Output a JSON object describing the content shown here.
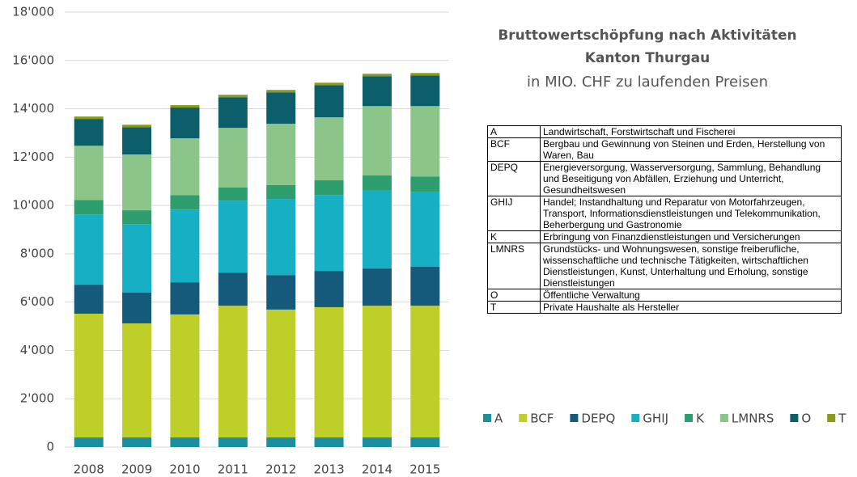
{
  "chart_data": {
    "type": "bar",
    "stacked": true,
    "title": "Bruttowertschöpfung nach Aktivitäten",
    "subtitle": "Kanton Thurgau",
    "note": "in MIO. CHF zu laufenden Preisen",
    "categories": [
      "2008",
      "2009",
      "2010",
      "2011",
      "2012",
      "2013",
      "2014",
      "2015"
    ],
    "series": [
      {
        "name": "A",
        "color": "#1a8fa0",
        "values": [
          400,
          400,
          400,
          400,
          400,
          400,
          400,
          400
        ]
      },
      {
        "name": "BCF",
        "color": "#bfcf2a",
        "values": [
          5120,
          4720,
          5090,
          5450,
          5290,
          5390,
          5450,
          5450
        ]
      },
      {
        "name": "DEPQ",
        "color": "#155a7a",
        "values": [
          1200,
          1270,
          1330,
          1370,
          1430,
          1500,
          1540,
          1610
        ]
      },
      {
        "name": "GHIJ",
        "color": "#17afc4",
        "values": [
          2910,
          2840,
          3010,
          2980,
          3150,
          3140,
          3250,
          3110
        ]
      },
      {
        "name": "K",
        "color": "#2e9e6e",
        "values": [
          600,
          570,
          600,
          540,
          570,
          610,
          600,
          630
        ]
      },
      {
        "name": "LMNRS",
        "color": "#8cc58a",
        "values": [
          2240,
          2310,
          2350,
          2470,
          2540,
          2610,
          2870,
          2910
        ]
      },
      {
        "name": "O",
        "color": "#0c5e6b",
        "values": [
          1110,
          1130,
          1270,
          1270,
          1300,
          1330,
          1240,
          1270
        ]
      },
      {
        "name": "T",
        "color": "#8c9a1c",
        "values": [
          100,
          100,
          100,
          100,
          100,
          100,
          100,
          100
        ]
      }
    ],
    "ylim": [
      0,
      18000
    ],
    "yticks": [
      0,
      {
        "value": 2000,
        "label": "2'000"
      },
      {
        "value": 4000,
        "label": "4'000"
      },
      {
        "value": 6000,
        "label": "6'000"
      },
      {
        "value": 8000,
        "label": "8'000"
      },
      {
        "value": 10000,
        "label": "10'000"
      },
      {
        "value": 12000,
        "label": "12'000"
      },
      {
        "value": 14000,
        "label": "14'000"
      },
      {
        "value": 16000,
        "label": "16'000"
      },
      {
        "value": 18000,
        "label": "18'000"
      }
    ],
    "grid": true,
    "legend": "bottom-right"
  },
  "table": {
    "rows": [
      [
        "A",
        "Landwirtschaft, Forstwirtschaft und Fischerei"
      ],
      [
        "BCF",
        "Bergbau und Gewinnung von Steinen und Erden, Herstellung von Waren, Bau"
      ],
      [
        "DEPQ",
        "Energieversorgung, Wasserversorgung, Sammlung, Behandlung und Beseitigung von Abfällen, Erziehung und Unterricht, Gesundheitswesen"
      ],
      [
        "GHIJ",
        "Handel; Instandhaltung und Reparatur von Motorfahrzeugen, Transport, Informationsdienstleistungen und Telekommunikation, Beherbergung und Gastronomie"
      ],
      [
        "K",
        "Erbringung von Finanzdienstleistungen und Versicherungen"
      ],
      [
        "LMNRS",
        "Grundstücks- und Wohnungswesen, sonstige freiberufliche, wissenschaftliche und technische Tätigkeiten, wirtschaftlichen Dienstleistungen, Kunst, Unterhaltung und Erholung, sonstige Dienstleistungen"
      ],
      [
        "O",
        "Öffentliche Verwaltung"
      ],
      [
        "T",
        "Private Haushalte als Hersteller"
      ]
    ]
  }
}
